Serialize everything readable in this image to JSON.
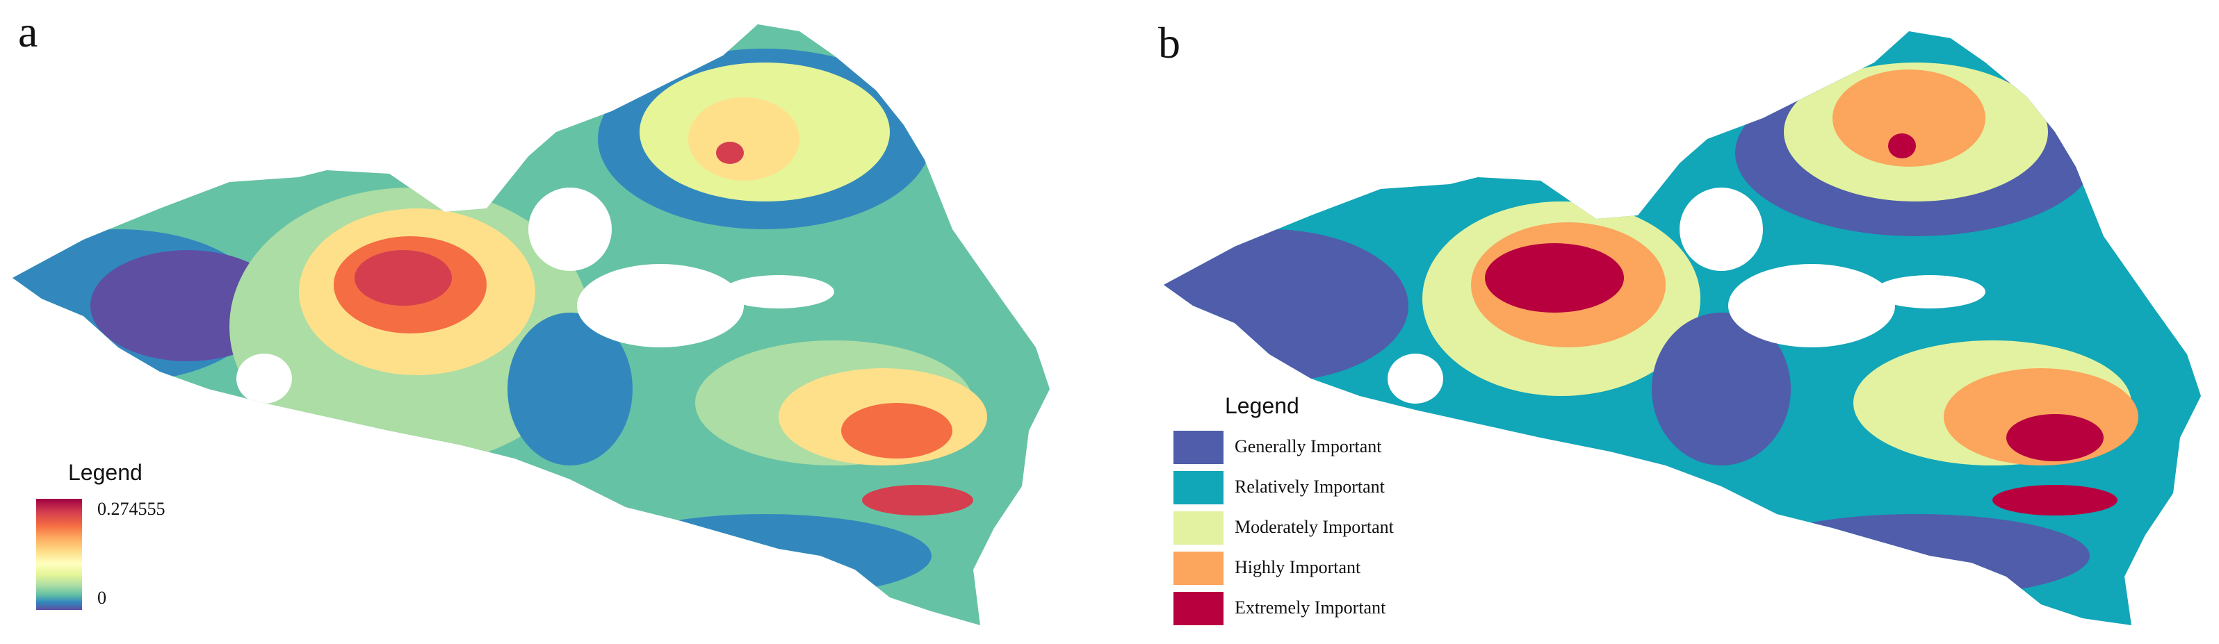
{
  "panels": [
    {
      "label": "a",
      "legend": {
        "title": "Legend",
        "max_label": "0.274555",
        "min_label": "0",
        "ramp": "spectral"
      }
    },
    {
      "label": "b",
      "legend": {
        "title": "Legend",
        "classes": [
          {
            "label": "Generally Important",
            "color": "#4f5daa"
          },
          {
            "label": "Relatively Important",
            "color": "#11a6b8"
          },
          {
            "label": "Moderately Important",
            "color": "#e3f2a0"
          },
          {
            "label": "Highly Important",
            "color": "#fca55d"
          },
          {
            "label": "Extremely Important",
            "color": "#b8003f"
          }
        ]
      }
    }
  ],
  "colors": {
    "continuous_ramp": [
      "#9e0142",
      "#d53e4f",
      "#f46d43",
      "#fdae61",
      "#fee08b",
      "#ffffbf",
      "#e6f598",
      "#abdda4",
      "#66c2a5",
      "#3288bd",
      "#5e4fa2"
    ]
  }
}
